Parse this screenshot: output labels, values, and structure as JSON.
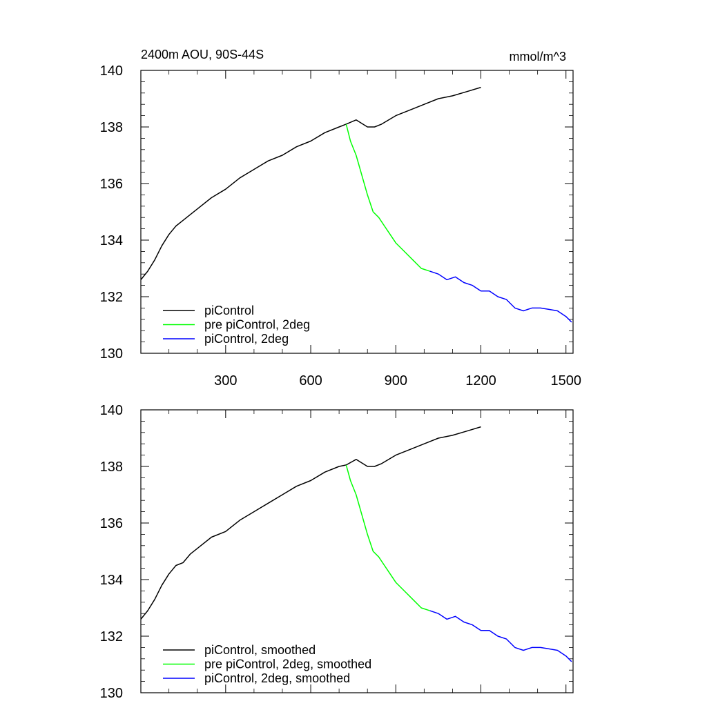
{
  "chart_data": [
    {
      "type": "line",
      "title_left": "2400m AOU, 90S-44S",
      "title_right": "mmol/m^3",
      "xlim": [
        1,
        1525
      ],
      "ylim": [
        130,
        140
      ],
      "xticks": [
        300,
        600,
        900,
        1200,
        1500
      ],
      "x_tick_labels": [
        "300",
        "600",
        "900",
        "1200",
        "1500"
      ],
      "show_x_tick_labels": true,
      "yticks": [
        130,
        132,
        134,
        136,
        138,
        140
      ],
      "y_tick_labels": [
        "130",
        "132",
        "134",
        "136",
        "138",
        "140"
      ],
      "grid": false,
      "legend_placement": "bottom-left",
      "series": [
        {
          "name": "piControl",
          "color": "#000000",
          "x": [
            1,
            25,
            50,
            75,
            100,
            125,
            150,
            175,
            200,
            250,
            300,
            350,
            400,
            450,
            500,
            550,
            600,
            650,
            700,
            725,
            760,
            800,
            825,
            850,
            900,
            950,
            1000,
            1050,
            1100,
            1150,
            1200
          ],
          "y": [
            132.6,
            132.9,
            133.3,
            133.8,
            134.2,
            134.5,
            134.7,
            134.9,
            135.1,
            135.5,
            135.8,
            136.2,
            136.5,
            136.8,
            137.0,
            137.3,
            137.5,
            137.8,
            138.0,
            138.1,
            138.25,
            138.0,
            138.0,
            138.1,
            138.4,
            138.6,
            138.8,
            139.0,
            139.1,
            139.25,
            139.4
          ]
        },
        {
          "name": "pre piControl, 2deg",
          "color": "#00ff00",
          "x": [
            725,
            740,
            760,
            780,
            800,
            820,
            840,
            860,
            880,
            900,
            930,
            960,
            990,
            1020
          ],
          "y": [
            138.1,
            137.5,
            137.0,
            136.3,
            135.6,
            135.0,
            134.8,
            134.5,
            134.2,
            133.9,
            133.6,
            133.3,
            133.0,
            132.9
          ]
        },
        {
          "name": "piControl, 2deg",
          "color": "#0000ff",
          "x": [
            1020,
            1050,
            1080,
            1110,
            1140,
            1170,
            1200,
            1230,
            1260,
            1290,
            1320,
            1350,
            1380,
            1410,
            1440,
            1470,
            1500,
            1520
          ],
          "y": [
            132.9,
            132.8,
            132.6,
            132.7,
            132.5,
            132.4,
            132.2,
            132.2,
            132.0,
            131.9,
            131.6,
            131.5,
            131.6,
            131.6,
            131.55,
            131.5,
            131.3,
            131.1
          ]
        }
      ]
    },
    {
      "type": "line",
      "title_left": "",
      "title_right": "",
      "xlim": [
        1,
        1525
      ],
      "ylim": [
        130,
        140
      ],
      "xticks": [
        300,
        600,
        900,
        1200,
        1500
      ],
      "x_tick_labels": [
        "300",
        "600",
        "900",
        "1200",
        "1500"
      ],
      "show_x_tick_labels": false,
      "yticks": [
        130,
        132,
        134,
        136,
        138,
        140
      ],
      "y_tick_labels": [
        "130",
        "132",
        "134",
        "136",
        "138",
        "140"
      ],
      "grid": false,
      "legend_placement": "bottom-left",
      "series": [
        {
          "name": "piControl, smoothed",
          "color": "#000000",
          "x": [
            1,
            25,
            50,
            75,
            100,
            125,
            150,
            175,
            200,
            250,
            300,
            350,
            400,
            450,
            500,
            550,
            600,
            650,
            700,
            725,
            760,
            800,
            825,
            850,
            900,
            950,
            1000,
            1050,
            1100,
            1150,
            1200
          ],
          "y": [
            132.6,
            132.9,
            133.3,
            133.8,
            134.2,
            134.5,
            134.6,
            134.9,
            135.1,
            135.5,
            135.7,
            136.1,
            136.4,
            136.7,
            137.0,
            137.3,
            137.5,
            137.8,
            138.0,
            138.05,
            138.25,
            138.0,
            138.0,
            138.1,
            138.4,
            138.6,
            138.8,
            139.0,
            139.1,
            139.25,
            139.4
          ]
        },
        {
          "name": "pre piControl, 2deg, smoothed",
          "color": "#00ff00",
          "x": [
            725,
            740,
            760,
            780,
            800,
            820,
            840,
            860,
            880,
            900,
            930,
            960,
            990,
            1020
          ],
          "y": [
            138.05,
            137.5,
            137.0,
            136.3,
            135.6,
            135.0,
            134.8,
            134.5,
            134.2,
            133.9,
            133.6,
            133.3,
            133.0,
            132.9
          ]
        },
        {
          "name": "piControl, 2deg, smoothed",
          "color": "#0000ff",
          "x": [
            1020,
            1050,
            1080,
            1110,
            1140,
            1170,
            1200,
            1230,
            1260,
            1290,
            1320,
            1350,
            1380,
            1410,
            1440,
            1470,
            1500,
            1520
          ],
          "y": [
            132.9,
            132.8,
            132.6,
            132.7,
            132.5,
            132.4,
            132.2,
            132.2,
            132.0,
            131.9,
            131.6,
            131.5,
            131.6,
            131.6,
            131.55,
            131.5,
            131.3,
            131.1
          ]
        }
      ]
    }
  ]
}
